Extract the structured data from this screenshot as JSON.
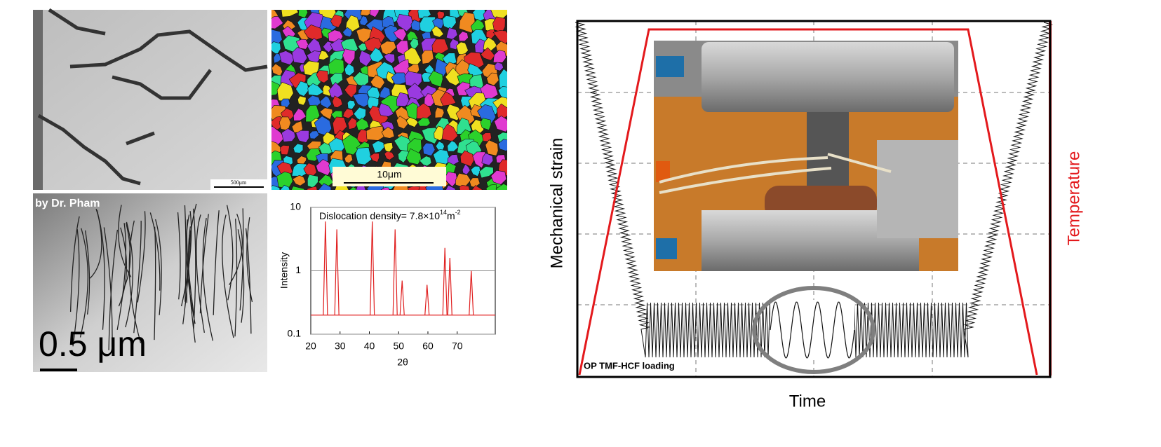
{
  "panels": {
    "sem": {
      "scale_bar": "500μm"
    },
    "ebsd": {
      "scale_bar": "10μm"
    },
    "tem": {
      "credit": "by Dr. Pham",
      "scale_bar": "0.5 μm"
    },
    "xrd": {
      "annotation": {
        "text": "Dislocation  density= 7.8×10",
        "exponent": "14",
        "unit": "m",
        "unit_exponent": "-2"
      },
      "xlabel": "2θ",
      "ylabel": "Intensity",
      "xlim": [
        20,
        83
      ],
      "ylim": [
        0.1,
        10
      ],
      "log_y": true,
      "xticks": [
        20,
        30,
        40,
        50,
        60,
        70
      ],
      "yticks": [
        0.1,
        1,
        10
      ],
      "peaks": {
        "positions": [
          25,
          28.9,
          41,
          48.8,
          51.2,
          59.7,
          65.8,
          67.5,
          74.8
        ],
        "heights": [
          6,
          4.5,
          6,
          4.5,
          0.7,
          0.6,
          2.3,
          1.6,
          1.0
        ]
      },
      "baseline": 0.2,
      "color": "#e02020"
    }
  },
  "schematic": {
    "ylabel": "Mechanical strain",
    "xlabel": "Time",
    "y2label": "Temperature",
    "annotation": "OP TMF-HCF loading"
  }
}
